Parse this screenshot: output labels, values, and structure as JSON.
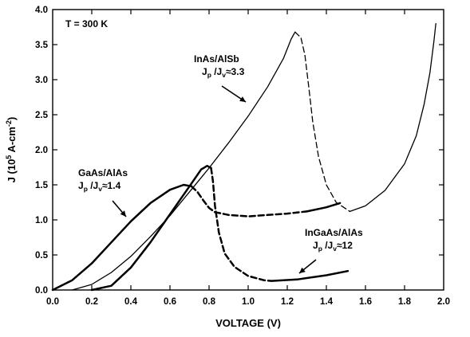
{
  "chart_data": {
    "type": "line",
    "xlabel": "VOLTAGE (V)",
    "ylabel_parts": [
      "J (10",
      "5",
      " A-cm",
      "-2",
      ")"
    ],
    "xlim": [
      0.0,
      2.0
    ],
    "ylim": [
      0.0,
      4.0
    ],
    "x_ticks": [
      "0.0",
      "0.2",
      "0.4",
      "0.6",
      "0.8",
      "1.0",
      "1.2",
      "1.4",
      "1.6",
      "1.8",
      "2.0"
    ],
    "y_ticks": [
      "0.0",
      "0.5",
      "1.0",
      "1.5",
      "2.0",
      "2.5",
      "3.0",
      "3.5",
      "4.0"
    ],
    "grid": false,
    "temperature_label": "T = 300 K",
    "series": [
      {
        "name": "InAs/AlSb",
        "ratio_label": [
          "J",
          "p",
          " /J",
          "v",
          "≈3.3"
        ],
        "line_width": "thin",
        "segments": [
          {
            "style": "solid",
            "points": [
              [
                0.1,
                0.0
              ],
              [
                0.2,
                0.08
              ],
              [
                0.3,
                0.25
              ],
              [
                0.4,
                0.48
              ],
              [
                0.5,
                0.76
              ],
              [
                0.6,
                1.06
              ],
              [
                0.7,
                1.4
              ],
              [
                0.8,
                1.74
              ],
              [
                0.9,
                2.1
              ],
              [
                1.0,
                2.48
              ],
              [
                1.1,
                2.9
              ],
              [
                1.18,
                3.3
              ],
              [
                1.22,
                3.58
              ],
              [
                1.24,
                3.68
              ]
            ]
          },
          {
            "style": "dashed",
            "points": [
              [
                1.24,
                3.68
              ],
              [
                1.27,
                3.6
              ],
              [
                1.29,
                3.35
              ],
              [
                1.31,
                2.9
              ],
              [
                1.33,
                2.4
              ],
              [
                1.36,
                1.9
              ],
              [
                1.4,
                1.5
              ],
              [
                1.45,
                1.25
              ],
              [
                1.52,
                1.12
              ]
            ]
          },
          {
            "style": "solid",
            "points": [
              [
                1.52,
                1.12
              ],
              [
                1.6,
                1.2
              ],
              [
                1.7,
                1.42
              ],
              [
                1.8,
                1.8
              ],
              [
                1.86,
                2.2
              ],
              [
                1.9,
                2.65
              ],
              [
                1.93,
                3.1
              ],
              [
                1.95,
                3.55
              ],
              [
                1.96,
                3.8
              ]
            ]
          }
        ]
      },
      {
        "name": "GaAs/AlAs",
        "ratio_label": [
          "J",
          "p",
          " /J",
          "v",
          "≈1.4"
        ],
        "line_width": "thick",
        "segments": [
          {
            "style": "solid",
            "points": [
              [
                0.0,
                0.0
              ],
              [
                0.1,
                0.14
              ],
              [
                0.2,
                0.38
              ],
              [
                0.3,
                0.68
              ],
              [
                0.4,
                0.98
              ],
              [
                0.5,
                1.24
              ],
              [
                0.6,
                1.43
              ],
              [
                0.67,
                1.5
              ],
              [
                0.71,
                1.48
              ]
            ]
          },
          {
            "style": "dashed",
            "points": [
              [
                0.71,
                1.48
              ],
              [
                0.74,
                1.4
              ],
              [
                0.77,
                1.28
              ],
              [
                0.8,
                1.17
              ],
              [
                0.83,
                1.11
              ],
              [
                0.9,
                1.07
              ],
              [
                1.0,
                1.05
              ],
              [
                1.1,
                1.07
              ],
              [
                1.2,
                1.09
              ],
              [
                1.3,
                1.12
              ]
            ]
          },
          {
            "style": "solid",
            "points": [
              [
                1.3,
                1.12
              ],
              [
                1.4,
                1.18
              ],
              [
                1.47,
                1.24
              ]
            ]
          }
        ]
      },
      {
        "name": "InGaAs/AlAs",
        "ratio_label": [
          "J",
          "p",
          " /J",
          "v",
          "≈12"
        ],
        "line_width": "thick",
        "segments": [
          {
            "style": "solid",
            "points": [
              [
                0.2,
                0.0
              ],
              [
                0.3,
                0.06
              ],
              [
                0.4,
                0.32
              ],
              [
                0.5,
                0.68
              ],
              [
                0.6,
                1.08
              ],
              [
                0.7,
                1.48
              ],
              [
                0.76,
                1.72
              ],
              [
                0.79,
                1.77
              ],
              [
                0.81,
                1.74
              ]
            ]
          },
          {
            "style": "dashed",
            "points": [
              [
                0.81,
                1.74
              ],
              [
                0.82,
                1.55
              ],
              [
                0.83,
                1.2
              ],
              [
                0.85,
                0.82
              ],
              [
                0.88,
                0.52
              ],
              [
                0.93,
                0.33
              ],
              [
                1.0,
                0.2
              ],
              [
                1.08,
                0.14
              ],
              [
                1.12,
                0.13
              ]
            ]
          },
          {
            "style": "solid",
            "points": [
              [
                1.12,
                0.13
              ],
              [
                1.25,
                0.15
              ],
              [
                1.4,
                0.21
              ],
              [
                1.51,
                0.27
              ]
            ]
          }
        ]
      }
    ]
  }
}
